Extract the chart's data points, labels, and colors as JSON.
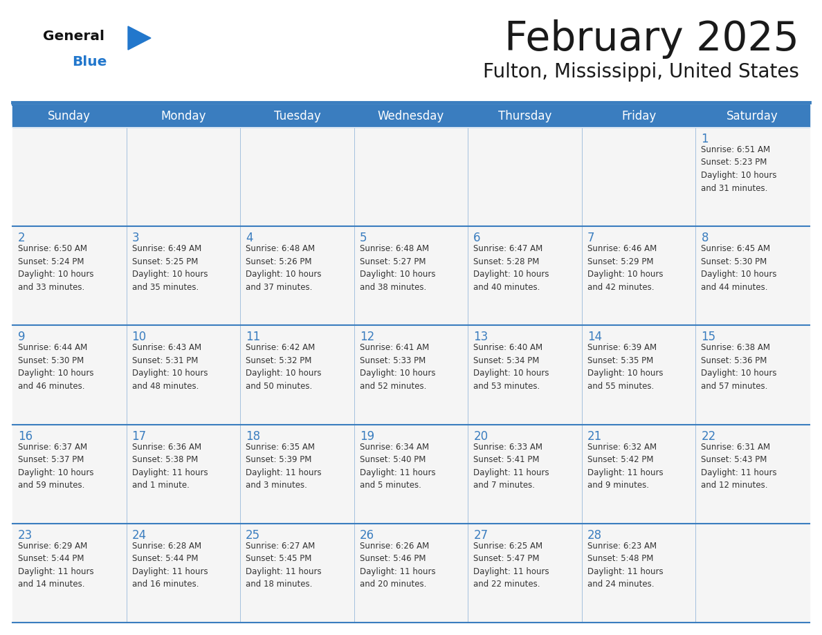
{
  "title": "February 2025",
  "subtitle": "Fulton, Mississippi, United States",
  "header_bg": "#3a7dbf",
  "header_text_color": "#ffffff",
  "day_names": [
    "Sunday",
    "Monday",
    "Tuesday",
    "Wednesday",
    "Thursday",
    "Friday",
    "Saturday"
  ],
  "cell_bg": "#f5f5f5",
  "separator_color": "#3a7dbf",
  "date_color": "#3a7dbf",
  "text_color": "#333333",
  "logo_general_color": "#111111",
  "logo_blue_color": "#2277cc",
  "weeks": [
    [
      {
        "day": null,
        "info": null
      },
      {
        "day": null,
        "info": null
      },
      {
        "day": null,
        "info": null
      },
      {
        "day": null,
        "info": null
      },
      {
        "day": null,
        "info": null
      },
      {
        "day": null,
        "info": null
      },
      {
        "day": 1,
        "info": "Sunrise: 6:51 AM\nSunset: 5:23 PM\nDaylight: 10 hours\nand 31 minutes."
      }
    ],
    [
      {
        "day": 2,
        "info": "Sunrise: 6:50 AM\nSunset: 5:24 PM\nDaylight: 10 hours\nand 33 minutes."
      },
      {
        "day": 3,
        "info": "Sunrise: 6:49 AM\nSunset: 5:25 PM\nDaylight: 10 hours\nand 35 minutes."
      },
      {
        "day": 4,
        "info": "Sunrise: 6:48 AM\nSunset: 5:26 PM\nDaylight: 10 hours\nand 37 minutes."
      },
      {
        "day": 5,
        "info": "Sunrise: 6:48 AM\nSunset: 5:27 PM\nDaylight: 10 hours\nand 38 minutes."
      },
      {
        "day": 6,
        "info": "Sunrise: 6:47 AM\nSunset: 5:28 PM\nDaylight: 10 hours\nand 40 minutes."
      },
      {
        "day": 7,
        "info": "Sunrise: 6:46 AM\nSunset: 5:29 PM\nDaylight: 10 hours\nand 42 minutes."
      },
      {
        "day": 8,
        "info": "Sunrise: 6:45 AM\nSunset: 5:30 PM\nDaylight: 10 hours\nand 44 minutes."
      }
    ],
    [
      {
        "day": 9,
        "info": "Sunrise: 6:44 AM\nSunset: 5:30 PM\nDaylight: 10 hours\nand 46 minutes."
      },
      {
        "day": 10,
        "info": "Sunrise: 6:43 AM\nSunset: 5:31 PM\nDaylight: 10 hours\nand 48 minutes."
      },
      {
        "day": 11,
        "info": "Sunrise: 6:42 AM\nSunset: 5:32 PM\nDaylight: 10 hours\nand 50 minutes."
      },
      {
        "day": 12,
        "info": "Sunrise: 6:41 AM\nSunset: 5:33 PM\nDaylight: 10 hours\nand 52 minutes."
      },
      {
        "day": 13,
        "info": "Sunrise: 6:40 AM\nSunset: 5:34 PM\nDaylight: 10 hours\nand 53 minutes."
      },
      {
        "day": 14,
        "info": "Sunrise: 6:39 AM\nSunset: 5:35 PM\nDaylight: 10 hours\nand 55 minutes."
      },
      {
        "day": 15,
        "info": "Sunrise: 6:38 AM\nSunset: 5:36 PM\nDaylight: 10 hours\nand 57 minutes."
      }
    ],
    [
      {
        "day": 16,
        "info": "Sunrise: 6:37 AM\nSunset: 5:37 PM\nDaylight: 10 hours\nand 59 minutes."
      },
      {
        "day": 17,
        "info": "Sunrise: 6:36 AM\nSunset: 5:38 PM\nDaylight: 11 hours\nand 1 minute."
      },
      {
        "day": 18,
        "info": "Sunrise: 6:35 AM\nSunset: 5:39 PM\nDaylight: 11 hours\nand 3 minutes."
      },
      {
        "day": 19,
        "info": "Sunrise: 6:34 AM\nSunset: 5:40 PM\nDaylight: 11 hours\nand 5 minutes."
      },
      {
        "day": 20,
        "info": "Sunrise: 6:33 AM\nSunset: 5:41 PM\nDaylight: 11 hours\nand 7 minutes."
      },
      {
        "day": 21,
        "info": "Sunrise: 6:32 AM\nSunset: 5:42 PM\nDaylight: 11 hours\nand 9 minutes."
      },
      {
        "day": 22,
        "info": "Sunrise: 6:31 AM\nSunset: 5:43 PM\nDaylight: 11 hours\nand 12 minutes."
      }
    ],
    [
      {
        "day": 23,
        "info": "Sunrise: 6:29 AM\nSunset: 5:44 PM\nDaylight: 11 hours\nand 14 minutes."
      },
      {
        "day": 24,
        "info": "Sunrise: 6:28 AM\nSunset: 5:44 PM\nDaylight: 11 hours\nand 16 minutes."
      },
      {
        "day": 25,
        "info": "Sunrise: 6:27 AM\nSunset: 5:45 PM\nDaylight: 11 hours\nand 18 minutes."
      },
      {
        "day": 26,
        "info": "Sunrise: 6:26 AM\nSunset: 5:46 PM\nDaylight: 11 hours\nand 20 minutes."
      },
      {
        "day": 27,
        "info": "Sunrise: 6:25 AM\nSunset: 5:47 PM\nDaylight: 11 hours\nand 22 minutes."
      },
      {
        "day": 28,
        "info": "Sunrise: 6:23 AM\nSunset: 5:48 PM\nDaylight: 11 hours\nand 24 minutes."
      },
      {
        "day": null,
        "info": null
      }
    ]
  ]
}
